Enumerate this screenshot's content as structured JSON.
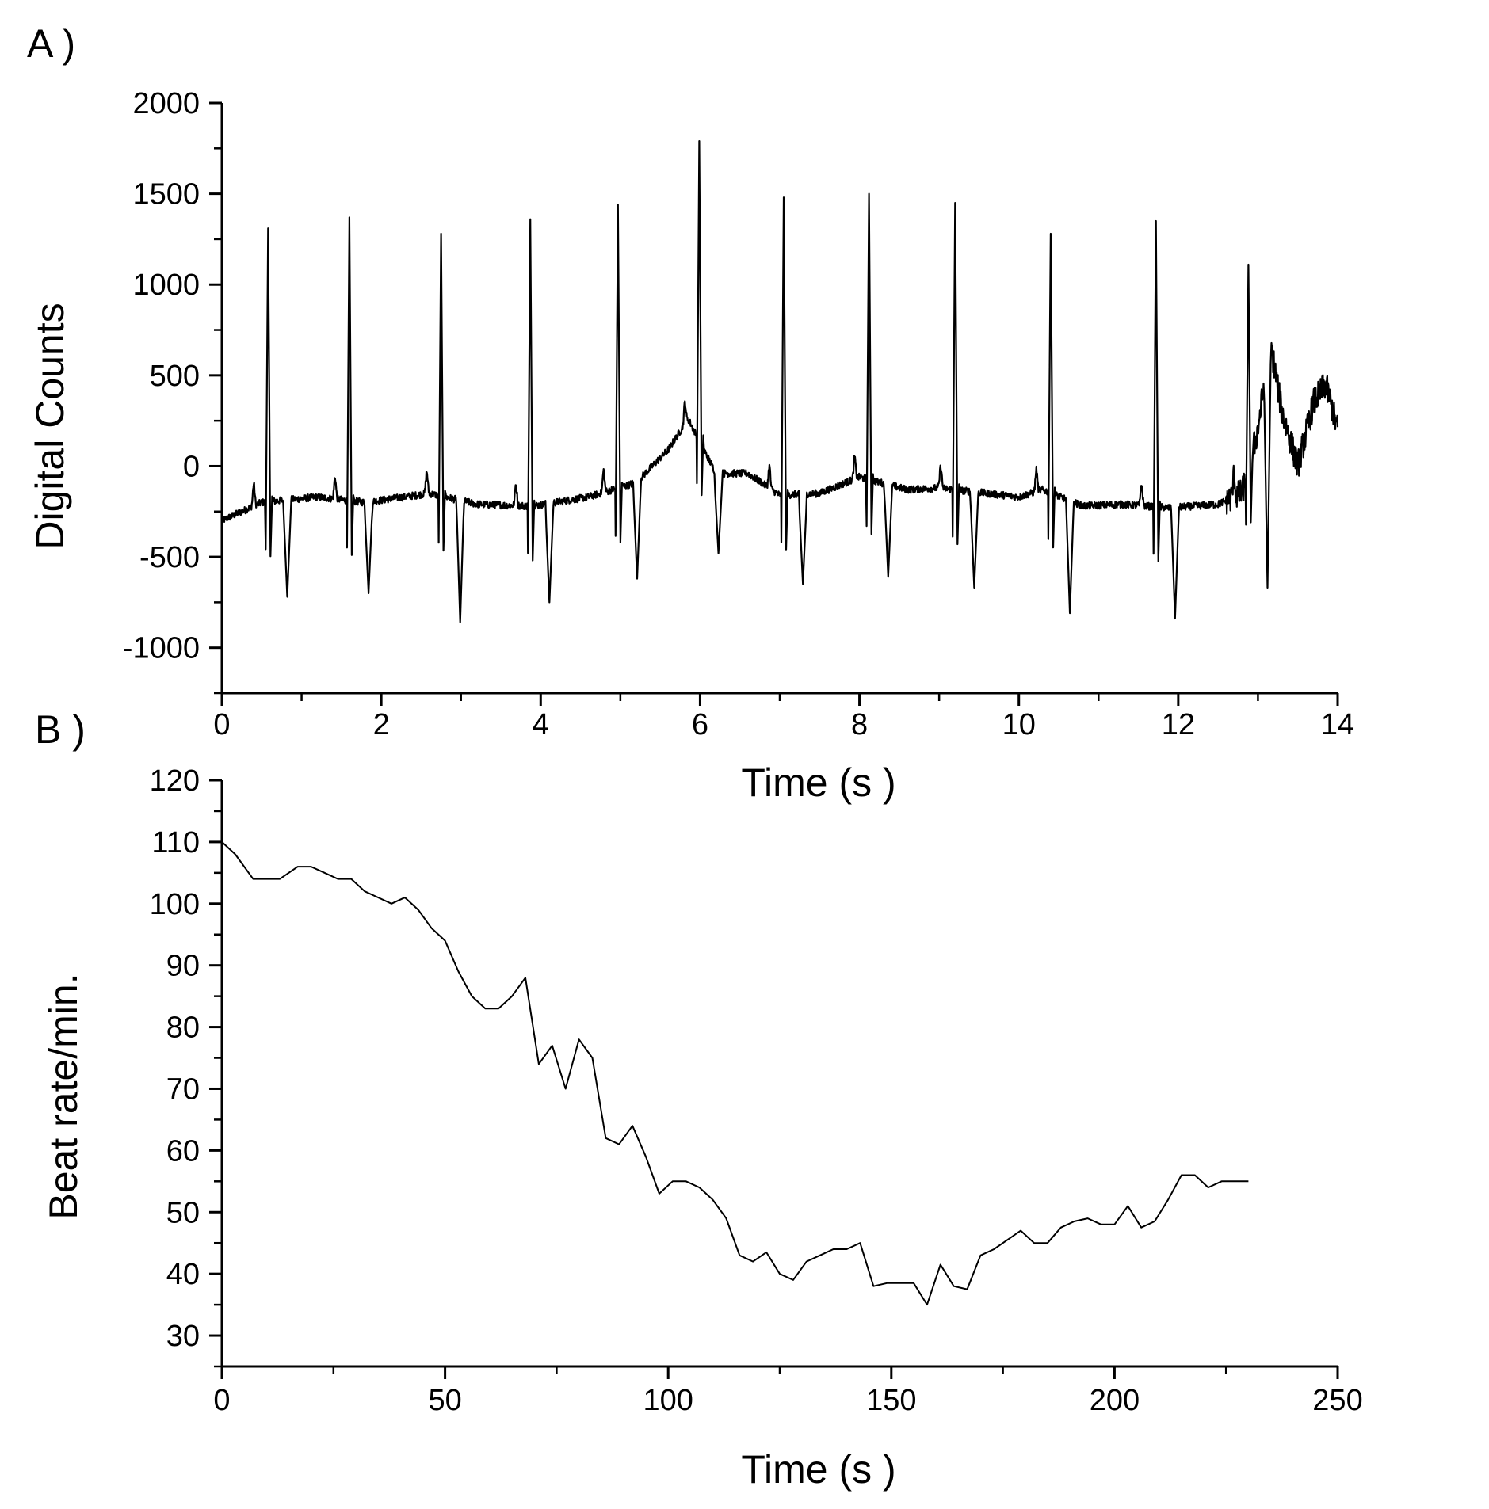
{
  "chart_data": [
    {
      "panel_label": "A )",
      "type": "line",
      "xlabel": "Time (s )",
      "ylabel": "Digital Counts",
      "xlim": [
        0,
        14
      ],
      "ylim": [
        -1250,
        2000
      ],
      "x_ticks": [
        0,
        2,
        4,
        6,
        8,
        10,
        12,
        14
      ],
      "y_ticks": [
        -1000,
        -500,
        0,
        500,
        1000,
        1500,
        2000
      ],
      "y_tick_labels": [
        "-1000",
        "-500",
        "0",
        "500",
        "1000",
        "1500",
        "2000"
      ],
      "baseline": [
        [
          0.0,
          -300
        ],
        [
          0.5,
          -200
        ],
        [
          1.2,
          -170
        ],
        [
          1.8,
          -200
        ],
        [
          2.6,
          -150
        ],
        [
          3.2,
          -210
        ],
        [
          3.9,
          -220
        ],
        [
          4.6,
          -170
        ],
        [
          5.2,
          -90
        ],
        [
          5.6,
          90
        ],
        [
          5.85,
          260
        ],
        [
          6.2,
          -40
        ],
        [
          6.6,
          -40
        ],
        [
          7.0,
          -160
        ],
        [
          7.5,
          -150
        ],
        [
          8.0,
          -60
        ],
        [
          8.6,
          -130
        ],
        [
          9.0,
          -120
        ],
        [
          9.6,
          -150
        ],
        [
          10.0,
          -170
        ],
        [
          10.3,
          -130
        ],
        [
          10.8,
          -220
        ],
        [
          11.3,
          -210
        ],
        [
          11.9,
          -230
        ],
        [
          12.5,
          -210
        ],
        [
          12.8,
          -150
        ],
        [
          13.0,
          200
        ],
        [
          13.15,
          700
        ],
        [
          13.3,
          300
        ],
        [
          13.5,
          0
        ],
        [
          13.7,
          350
        ],
        [
          13.85,
          450
        ],
        [
          14.0,
          200
        ]
      ],
      "beats": [
        {
          "t": 0.58,
          "peak": 1310,
          "trough": -720
        },
        {
          "t": 1.6,
          "peak": 1370,
          "trough": -700
        },
        {
          "t": 2.75,
          "peak": 1280,
          "trough": -860
        },
        {
          "t": 3.87,
          "peak": 1360,
          "trough": -750
        },
        {
          "t": 4.97,
          "peak": 1440,
          "trough": -620
        },
        {
          "t": 5.99,
          "peak": 1790,
          "trough": -480
        },
        {
          "t": 7.05,
          "peak": 1480,
          "trough": -650
        },
        {
          "t": 8.12,
          "peak": 1500,
          "trough": -610
        },
        {
          "t": 9.2,
          "peak": 1450,
          "trough": -670
        },
        {
          "t": 10.4,
          "peak": 1280,
          "trough": -810
        },
        {
          "t": 11.72,
          "peak": 1350,
          "trough": -840
        },
        {
          "t": 12.88,
          "peak": 1110,
          "trough": -670
        }
      ]
    },
    {
      "panel_label": "B )",
      "type": "line",
      "xlabel": "Time (s )",
      "ylabel": "Beat rate/min.",
      "xlim": [
        0,
        250
      ],
      "ylim": [
        25,
        120
      ],
      "x_ticks": [
        0,
        50,
        100,
        150,
        200,
        250
      ],
      "y_ticks": [
        30,
        40,
        50,
        60,
        70,
        80,
        90,
        100,
        110,
        120
      ],
      "series": [
        {
          "x": [
            0,
            3,
            7,
            10,
            13,
            17,
            20,
            23,
            26,
            29,
            32,
            35,
            38,
            41,
            44,
            47,
            50,
            53,
            56,
            59,
            62,
            65,
            68,
            71,
            74,
            77,
            80,
            83,
            86,
            89,
            92,
            95,
            98,
            101,
            104,
            107,
            110,
            113,
            116,
            119,
            122,
            125,
            128,
            131,
            134,
            137,
            140,
            143,
            146,
            149,
            152,
            155,
            158,
            161,
            164,
            167,
            170,
            173,
            176,
            179,
            182,
            185,
            188,
            191,
            194,
            197,
            200,
            203,
            206,
            209,
            212,
            215,
            218,
            221,
            224,
            227,
            230
          ],
          "y": [
            110,
            108,
            104,
            104,
            104,
            106,
            106,
            105,
            104,
            104,
            102,
            101,
            100,
            101,
            99,
            96,
            94,
            89,
            85,
            83,
            83,
            85,
            88,
            74,
            77,
            70,
            78,
            75,
            62,
            61,
            64,
            59,
            53,
            55,
            55,
            54,
            52,
            49,
            43,
            42,
            43.5,
            40,
            39,
            42,
            43,
            44,
            44,
            45,
            38,
            38.5,
            38.5,
            38.5,
            35,
            41.5,
            38,
            37.5,
            43,
            44,
            45.5,
            47,
            45,
            45,
            47.5,
            48.5,
            49,
            48,
            48,
            51,
            47.5,
            48.5,
            52,
            56,
            56,
            54,
            55,
            55,
            55
          ]
        }
      ]
    }
  ]
}
